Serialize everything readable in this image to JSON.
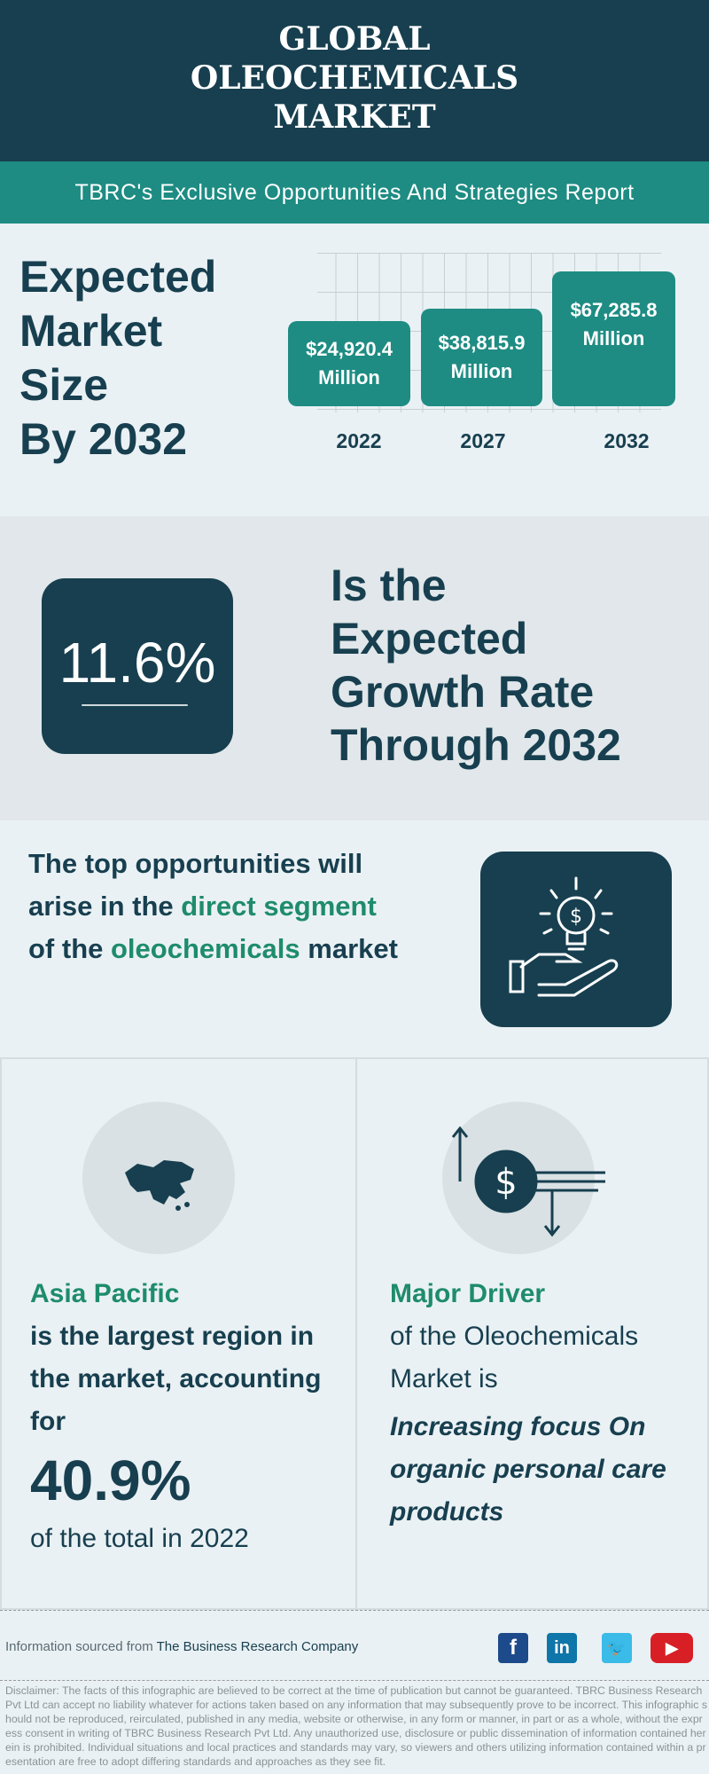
{
  "header": {
    "title_lines": [
      "GLOBAL",
      "OLEOCHEMICALS",
      "MARKET"
    ],
    "subtitle": "TBRC's Exclusive Opportunities And Strategies Report"
  },
  "market_size": {
    "heading_lines": [
      "Expected",
      "Market",
      "Size",
      "By 2032"
    ],
    "bars": [
      {
        "year": "2022",
        "value": "$24,920.4",
        "unit": "Million",
        "amount": 24920.4
      },
      {
        "year": "2027",
        "value": "$38,815.9",
        "unit": "Million",
        "amount": 38815.9
      },
      {
        "year": "2032",
        "value": "$67,285.8",
        "unit": "Million",
        "amount": 67285.8
      }
    ]
  },
  "growth": {
    "rate": "11.6%",
    "text_lines": [
      "Is the",
      "Expected",
      "Growth Rate",
      "Through 2032"
    ]
  },
  "opportunity": {
    "pre": "The top opportunities will arise in the ",
    "hl1": "direct segment",
    "mid": " of the ",
    "hl2": "oleochemicals",
    "post": " market",
    "icon": "lightbulb-dollar-hand-icon"
  },
  "region": {
    "name": "Asia Pacific",
    "line": "is the largest region in the  market, accounting for",
    "share": "40.9%",
    "tail": "of the total in 2022",
    "icon": "asia-map-icon"
  },
  "driver": {
    "title": "Major Driver",
    "line": "of the Oleochemicals Market is",
    "value": "Increasing focus On organic personal care products",
    "icon": "dollar-arrows-icon"
  },
  "footer": {
    "source_prefix": "Information sourced from ",
    "source": "The Business Research Company",
    "social": [
      "facebook",
      "linkedin",
      "twitter",
      "youtube"
    ],
    "disclaimer": "Disclaimer: The facts of this infographic are believed to be correct at the time of publication but cannot be guaranteed. TBRC Business Research Pvt Ltd can accept no liability whatever for actions taken based on any information that may subsequently prove to be incorrect. This infographic should not be reproduced, reirculated, published in any media, website or otherwise, in any form or manner, in part or as a whole, without the express consent in writing of TBRC Business Research Pvt Ltd. Any unauthorized use, disclosure or public dissemination of information contained herein is prohibited. Individual situations and local practices and standards may vary, so viewers and others utilizing information contained within a presentation are free to adopt differing standards and approaches as they see fit."
  },
  "colors": {
    "dark": "#173f4f",
    "teal": "#1e8c83",
    "green": "#1e8c6b"
  }
}
